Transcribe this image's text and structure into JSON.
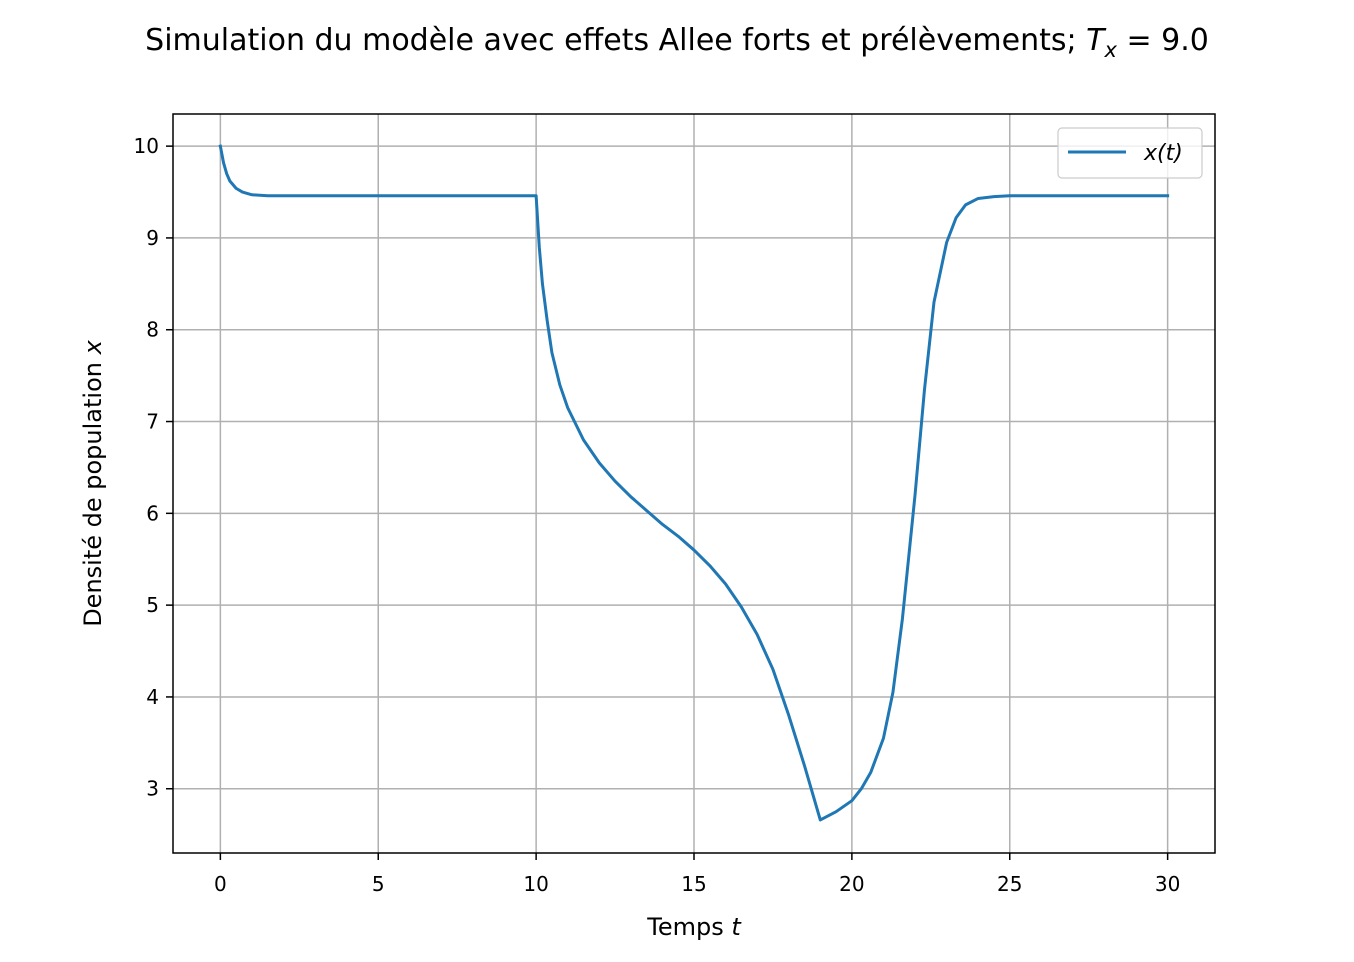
{
  "chart_data": {
    "type": "line",
    "title": "Simulation du modèle avec effets Allee forts et prélèvements; ",
    "title_math": {
      "var": "T",
      "sub": "x",
      "rest": " = 9.0"
    },
    "xlabel": "Temps ",
    "xlabel_var": "t",
    "ylabel": "Densité de population ",
    "ylabel_var": "x",
    "xlim": [
      -1.5,
      31.5
    ],
    "ylim": [
      2.3,
      10.35
    ],
    "xticks": [
      0,
      5,
      10,
      15,
      20,
      25,
      30
    ],
    "yticks": [
      3,
      4,
      5,
      6,
      7,
      8,
      9,
      10
    ],
    "grid": true,
    "legend_position": "upper right",
    "series": [
      {
        "name": "x(t)",
        "color": "#1f77b4",
        "x": [
          0,
          0.1,
          0.2,
          0.3,
          0.5,
          0.7,
          1.0,
          1.5,
          2,
          3,
          5,
          7,
          9,
          10,
          10.1,
          10.2,
          10.35,
          10.5,
          10.75,
          11,
          11.5,
          12,
          12.5,
          13,
          13.5,
          14,
          14.5,
          15,
          15.5,
          16,
          16.5,
          17,
          17.5,
          18,
          18.5,
          19,
          19.5,
          20,
          20.3,
          20.6,
          21,
          21.3,
          21.6,
          22,
          22.3,
          22.6,
          23,
          23.3,
          23.6,
          24,
          24.5,
          25,
          26,
          28,
          30
        ],
        "y": [
          10.0,
          9.82,
          9.7,
          9.62,
          9.54,
          9.5,
          9.47,
          9.46,
          9.46,
          9.46,
          9.46,
          9.46,
          9.46,
          9.46,
          8.9,
          8.5,
          8.1,
          7.75,
          7.4,
          7.15,
          6.8,
          6.55,
          6.35,
          6.18,
          6.03,
          5.88,
          5.75,
          5.6,
          5.43,
          5.23,
          4.98,
          4.68,
          4.3,
          3.8,
          3.25,
          2.66,
          2.75,
          2.87,
          3.0,
          3.18,
          3.55,
          4.05,
          4.85,
          6.2,
          7.35,
          8.3,
          8.95,
          9.22,
          9.36,
          9.43,
          9.45,
          9.46,
          9.46,
          9.46,
          9.46
        ]
      }
    ]
  }
}
